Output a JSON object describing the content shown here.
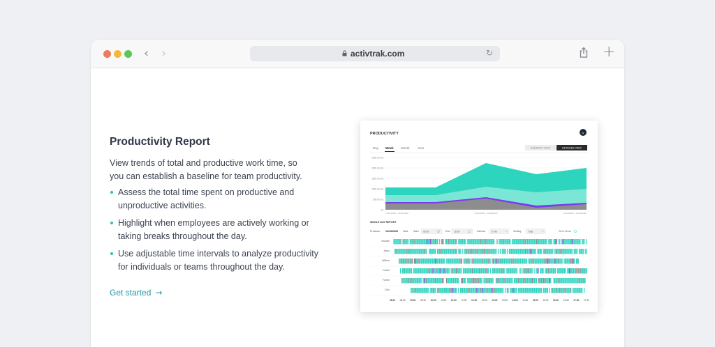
{
  "browser": {
    "url": "activtrak.com",
    "icons": {
      "back": "chevron-left-icon",
      "forward": "chevron-right-icon",
      "lock": "lock-icon",
      "reload": "reload-icon",
      "share": "share-icon",
      "new_tab": "plus-icon"
    }
  },
  "content": {
    "title": "Productivity Report",
    "description": "View trends of total and productive work time, so you can establish a baseline for team productivity.",
    "bullets": [
      "Assess the total time spent on productive and unproductive activities.",
      "Highlight when employees are actively working or taking breaks throughout the day.",
      "Use adjustable time intervals to analyze productivity for individuals or teams throughout the day."
    ],
    "cta": "Get started",
    "accent": "#2dc3a5",
    "link_color": "#1d9ca8"
  },
  "report": {
    "title": "PRODUCTIVITY",
    "avatar": "U",
    "tabs": [
      "Day",
      "Week",
      "Month",
      "Year"
    ],
    "active_tab": "Week",
    "view_buttons": [
      "SUMMARY VIEW",
      "DETAILED VIEW"
    ],
    "active_view": "DETAILED VIEW",
    "y_ticks": [
      "250h 0m 0s",
      "200h 0m 0s",
      "150h 0m 0s",
      "100h 0m 0s",
      "50h 0m 0s",
      "0s"
    ],
    "x_ticks": [
      "11/15/2020 – 11/21/2020",
      "11/22/2020 – 11/28/2020",
      "12/13/2020 – 12/19/2020"
    ],
    "single_day": {
      "label": "SINGLE DAY REPORT",
      "previous": "Previous",
      "date": "12/19/2020",
      "next": "Next",
      "start_label": "Start",
      "start_value": "08:00",
      "end_label": "End",
      "end_value": "18:00",
      "interval_label": "Interval",
      "interval_value": "5 min",
      "sorting_label": "Sorting",
      "sorting_value": "Total",
      "mode_label": "Strict Mode",
      "names": [
        "Michael",
        "Jason",
        "William",
        "Daniel",
        "Farrah",
        "Cleo"
      ],
      "times": [
        "08:00",
        "08:30",
        "09:00",
        "09:30",
        "10:00",
        "10:30",
        "11:00",
        "11:30",
        "12:00",
        "12:30",
        "13:00",
        "13:30",
        "14:00",
        "14:30",
        "15:00",
        "15:30",
        "16:00",
        "16:30",
        "17:00",
        "17:30"
      ]
    },
    "colors": {
      "productive": "#2dd4be",
      "productive_light": "#7be6d6",
      "undefined": "#8d8d8d",
      "unproductive": "#7c3aed",
      "grid": "#eeeeee"
    }
  }
}
